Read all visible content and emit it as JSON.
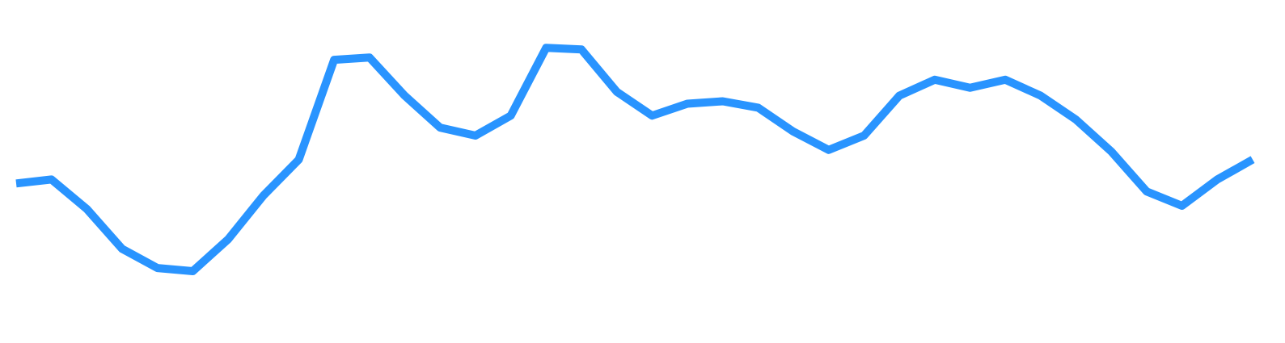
{
  "chart_data": {
    "type": "line",
    "title": "",
    "xlabel": "",
    "ylabel": "",
    "grid": false,
    "axes_visible": false,
    "line_color": "#2994FF",
    "x": [
      0,
      1,
      2,
      3,
      4,
      5,
      6,
      7,
      8,
      9,
      10,
      11,
      12,
      13,
      14,
      15,
      16,
      17,
      18,
      19,
      20,
      21,
      22,
      23,
      24,
      25,
      26,
      27,
      28,
      29,
      30,
      31,
      32,
      33,
      34,
      35
    ],
    "values": [
      20.0,
      20.5,
      16.8,
      11.8,
      9.4,
      9.0,
      13.0,
      18.5,
      23.0,
      35.5,
      35.8,
      31.0,
      27.0,
      26.0,
      28.5,
      37.0,
      36.8,
      31.5,
      28.5,
      30.0,
      30.3,
      29.5,
      26.5,
      24.2,
      26.0,
      31.0,
      33.0,
      32.0,
      33.0,
      31.0,
      28.0,
      24.0,
      19.0,
      17.2,
      20.5,
      23.0
    ],
    "ylim": [
      0,
      43
    ]
  }
}
